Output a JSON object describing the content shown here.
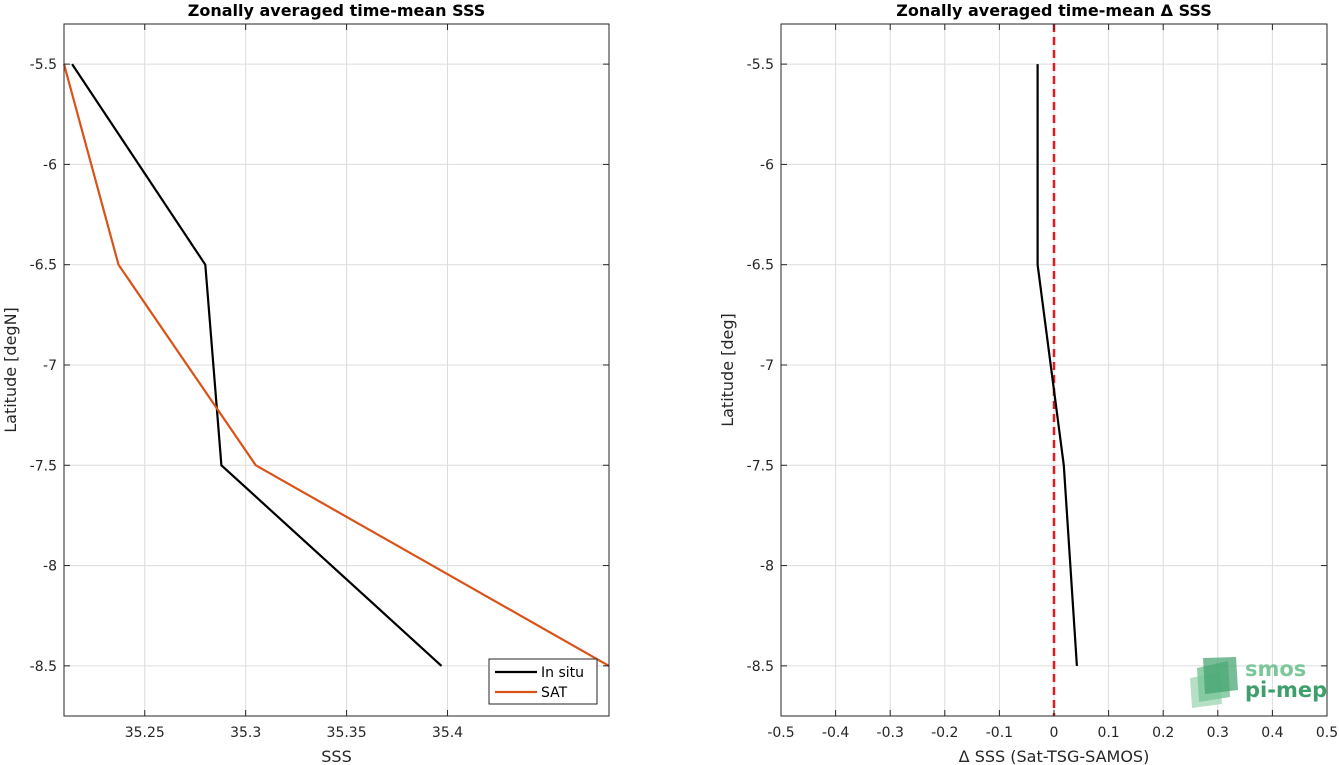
{
  "logo": {
    "line1": "smos",
    "line2": "pi-mep",
    "colors": [
      "#3f9f6c",
      "#7cc79a",
      "#a9dbbb"
    ]
  },
  "chart_data": [
    {
      "type": "line",
      "title": "Zonally averaged time-mean SSS",
      "xlabel": "SSS",
      "ylabel": "Latitude [degN]",
      "xlim": [
        35.21,
        35.48
      ],
      "ylim": [
        -8.75,
        -5.3
      ],
      "xticks": [
        35.25,
        35.3,
        35.35,
        35.4
      ],
      "xtick_labels": [
        "35.25",
        "35.3",
        "35.35",
        "35.4"
      ],
      "yticks": [
        -5.5,
        -6,
        -6.5,
        -7,
        -7.5,
        -8,
        -8.5
      ],
      "ytick_labels": [
        "-5.5",
        "-6",
        "-6.5",
        "-7",
        "-7.5",
        "-8",
        "-8.5"
      ],
      "grid": true,
      "legend": "bottom-right",
      "series": [
        {
          "name": "In situ",
          "color": "#000000",
          "x": [
            35.214,
            35.28,
            35.288,
            35.397
          ],
          "y": [
            -5.5,
            -6.5,
            -7.5,
            -8.5
          ]
        },
        {
          "name": "SAT",
          "color": "#d95319",
          "x": [
            35.21,
            35.237,
            35.305,
            35.48
          ],
          "y": [
            -5.5,
            -6.5,
            -7.5,
            -8.5
          ]
        }
      ]
    },
    {
      "type": "line",
      "title": "Zonally averaged time-mean Δ SSS",
      "xlabel": "Δ SSS (Sat-TSG-SAMOS)",
      "ylabel": "Latitude [deg]",
      "xlim": [
        -0.5,
        0.5
      ],
      "ylim": [
        -8.75,
        -5.3
      ],
      "xticks": [
        -0.5,
        -0.4,
        -0.3,
        -0.2,
        -0.1,
        0,
        0.1,
        0.2,
        0.3,
        0.4,
        0.5
      ],
      "xtick_labels": [
        "-0.5",
        "-0.4",
        "-0.3",
        "-0.2",
        "-0.1",
        "0",
        "0.1",
        "0.2",
        "0.3",
        "0.4",
        "0.5"
      ],
      "yticks": [
        -5.5,
        -6,
        -6.5,
        -7,
        -7.5,
        -8,
        -8.5
      ],
      "ytick_labels": [
        "-5.5",
        "-6",
        "-6.5",
        "-7",
        "-7.5",
        "-8",
        "-8.5"
      ],
      "grid": true,
      "reference_line": {
        "x": 0,
        "color": "#e41a1c",
        "style": "dashed"
      },
      "series": [
        {
          "color": "#000000",
          "x": [
            -0.03,
            -0.03,
            0.018,
            0.042
          ],
          "y": [
            -5.5,
            -6.5,
            -7.5,
            -8.5
          ]
        }
      ]
    }
  ]
}
